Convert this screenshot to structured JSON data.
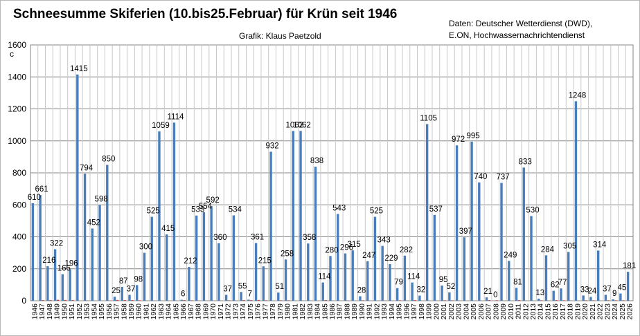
{
  "header": {
    "title": "Schneesumme Skiferien (10.bis25.Februar) für Krün seit 1946",
    "credit": "Grafik: Klaus Paetzold",
    "source_line1": "Daten: Deutscher Wetterdienst (DWD),",
    "source_line2": "E.ON,    Hochwassernachrichtendienst"
  },
  "chart_data": {
    "type": "bar",
    "title": "Schneesumme Skiferien (10.bis25.Februar) für Krün seit 1946",
    "ylabel": "c",
    "ylim": [
      0,
      1600
    ],
    "yticks": [
      0,
      200,
      400,
      600,
      800,
      1000,
      1200,
      1400,
      1600
    ],
    "grid": true,
    "categories": [
      "1946",
      "1947",
      "1948",
      "1949",
      "1950",
      "1951",
      "1952",
      "1953",
      "1954",
      "1955",
      "1956",
      "1957",
      "1958",
      "1959",
      "1960",
      "1961",
      "1962",
      "1963",
      "1964",
      "1965",
      "1966",
      "1967",
      "1968",
      "1969",
      "1970",
      "1971",
      "1972",
      "1973",
      "1974",
      "1975",
      "1976",
      "1977",
      "1978",
      "1979",
      "1980",
      "1981",
      "1982",
      "1983",
      "1984",
      "1985",
      "1986",
      "1987",
      "1988",
      "1989",
      "1990",
      "1991",
      "1992",
      "1993",
      "1994",
      "1995",
      "1996",
      "1997",
      "1998",
      "1999",
      "2000",
      "2001",
      "2002",
      "2003",
      "2004",
      "2005",
      "2006",
      "2007",
      "2008",
      "2009",
      "2010",
      "2011",
      "2012",
      "2013",
      "2014",
      "2015",
      "2016",
      "2017",
      "2018",
      "2019",
      "2020",
      "2021",
      "2022",
      "2023",
      "2024",
      "2025",
      "2026"
    ],
    "series": [
      {
        "color": "#4a7ebb",
        "values": [
          610,
          661,
          216,
          322,
          166,
          196,
          1415,
          794,
          452,
          598,
          850,
          25,
          87,
          37,
          98,
          300,
          525,
          1059,
          415,
          1114,
          6,
          212,
          533,
          554,
          592,
          360,
          37,
          534,
          55,
          7,
          361,
          215,
          932,
          51,
          258,
          1062,
          1062,
          358,
          838,
          114,
          280,
          543,
          296,
          315,
          28,
          247,
          525,
          343,
          229,
          79,
          282,
          114,
          32,
          1105,
          537,
          95,
          52,
          972,
          397,
          995,
          740,
          21,
          0,
          737,
          249,
          81,
          833,
          530,
          13,
          284,
          62,
          77,
          305,
          1248,
          33,
          24,
          314,
          37,
          9,
          45,
          181
        ],
        "labels": [
          "610",
          "661",
          "216",
          "322",
          "166",
          "196",
          "1415",
          "794",
          "452",
          "598",
          "850",
          "25",
          "87",
          "37",
          "98",
          "300",
          "525",
          "1059",
          "415",
          "1114",
          "6",
          "212",
          "533",
          "554",
          "592",
          "360",
          "37",
          "534",
          "55",
          "7",
          "361",
          "215",
          "932",
          "51",
          "258",
          "1062",
          "1062",
          "358",
          "838",
          "114",
          "280",
          "543",
          "296",
          "315",
          "28",
          "247",
          "525",
          "343",
          "229",
          "79",
          "282",
          "114",
          "32",
          "1105",
          "537",
          "95",
          "52",
          "972",
          "397",
          "995",
          "740",
          "21",
          "0",
          "737",
          "249",
          "81",
          "833",
          "530",
          "13",
          "284",
          "62",
          "77",
          "305",
          "1248",
          "33",
          "24",
          "314",
          "37",
          "9",
          "45",
          "181"
        ]
      },
      {
        "color": "#be4b48",
        "values": [
          0,
          4,
          4,
          6,
          5,
          4,
          0,
          0,
          0,
          0,
          0,
          5,
          4,
          4,
          3,
          0,
          0,
          0,
          0,
          0,
          4,
          3,
          0,
          0,
          0,
          0,
          3,
          0,
          4,
          4,
          5,
          3,
          0,
          3,
          3,
          0,
          0,
          0,
          0,
          4,
          0,
          0,
          0,
          0,
          3,
          0,
          0,
          0,
          0,
          3,
          0,
          4,
          0,
          0,
          0,
          3,
          3,
          0,
          0,
          0,
          0,
          4,
          3,
          0,
          0,
          4,
          0,
          0,
          3,
          0,
          4,
          3,
          0,
          0,
          3,
          3,
          0,
          3,
          3,
          3,
          0
        ]
      }
    ]
  }
}
